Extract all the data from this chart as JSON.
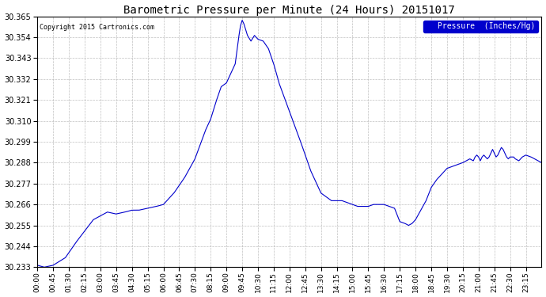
{
  "title": "Barometric Pressure per Minute (24 Hours) 20151017",
  "copyright": "Copyright 2015 Cartronics.com",
  "legend_label": "Pressure  (Inches/Hg)",
  "line_color": "#0000cc",
  "background_color": "#ffffff",
  "plot_bg_color": "#ffffff",
  "grid_color": "#b0b0b0",
  "ylim": [
    30.233,
    30.365
  ],
  "yticks": [
    30.233,
    30.244,
    30.255,
    30.266,
    30.277,
    30.288,
    30.299,
    30.31,
    30.321,
    30.332,
    30.343,
    30.354,
    30.365
  ],
  "xtick_labels": [
    "00:00",
    "00:45",
    "01:30",
    "02:15",
    "03:00",
    "03:45",
    "04:30",
    "05:15",
    "06:00",
    "06:45",
    "07:30",
    "08:15",
    "09:00",
    "09:45",
    "10:30",
    "11:15",
    "12:00",
    "12:45",
    "13:30",
    "14:15",
    "15:00",
    "15:45",
    "16:30",
    "17:15",
    "18:00",
    "18:45",
    "19:30",
    "20:15",
    "21:00",
    "21:45",
    "22:30",
    "23:15"
  ],
  "time_points": [
    0,
    45,
    90,
    135,
    180,
    225,
    270,
    315,
    360,
    405,
    450,
    495,
    540,
    585,
    630,
    675,
    720,
    765,
    810,
    855,
    900,
    945,
    990,
    1035,
    1080,
    1125,
    1170,
    1215,
    1260,
    1305,
    1350,
    1395
  ],
  "pressure_curve": [
    [
      0,
      30.234
    ],
    [
      20,
      30.233
    ],
    [
      45,
      30.234
    ],
    [
      80,
      30.238
    ],
    [
      110,
      30.246
    ],
    [
      135,
      30.252
    ],
    [
      160,
      30.258
    ],
    [
      180,
      30.26
    ],
    [
      200,
      30.262
    ],
    [
      225,
      30.261
    ],
    [
      250,
      30.262
    ],
    [
      270,
      30.263
    ],
    [
      290,
      30.263
    ],
    [
      315,
      30.264
    ],
    [
      340,
      30.265
    ],
    [
      360,
      30.266
    ],
    [
      390,
      30.272
    ],
    [
      420,
      30.28
    ],
    [
      450,
      30.29
    ],
    [
      480,
      30.305
    ],
    [
      495,
      30.311
    ],
    [
      510,
      30.32
    ],
    [
      525,
      30.328
    ],
    [
      540,
      30.33
    ],
    [
      555,
      30.336
    ],
    [
      565,
      30.34
    ],
    [
      575,
      30.354
    ],
    [
      580,
      30.36
    ],
    [
      585,
      30.363
    ],
    [
      590,
      30.361
    ],
    [
      600,
      30.355
    ],
    [
      610,
      30.352
    ],
    [
      620,
      30.355
    ],
    [
      630,
      30.353
    ],
    [
      645,
      30.352
    ],
    [
      660,
      30.348
    ],
    [
      675,
      30.34
    ],
    [
      690,
      30.33
    ],
    [
      720,
      30.315
    ],
    [
      750,
      30.3
    ],
    [
      780,
      30.284
    ],
    [
      810,
      30.272
    ],
    [
      840,
      30.268
    ],
    [
      855,
      30.268
    ],
    [
      870,
      30.268
    ],
    [
      885,
      30.267
    ],
    [
      900,
      30.266
    ],
    [
      915,
      30.265
    ],
    [
      930,
      30.265
    ],
    [
      945,
      30.265
    ],
    [
      960,
      30.266
    ],
    [
      975,
      30.266
    ],
    [
      990,
      30.266
    ],
    [
      1005,
      30.265
    ],
    [
      1020,
      30.264
    ],
    [
      1035,
      30.257
    ],
    [
      1050,
      30.256
    ],
    [
      1060,
      30.255
    ],
    [
      1070,
      30.256
    ],
    [
      1080,
      30.258
    ],
    [
      1095,
      30.263
    ],
    [
      1110,
      30.268
    ],
    [
      1125,
      30.275
    ],
    [
      1140,
      30.279
    ],
    [
      1155,
      30.282
    ],
    [
      1170,
      30.285
    ],
    [
      1185,
      30.286
    ],
    [
      1200,
      30.287
    ],
    [
      1215,
      30.288
    ],
    [
      1225,
      30.289
    ],
    [
      1235,
      30.29
    ],
    [
      1245,
      30.289
    ],
    [
      1250,
      30.291
    ],
    [
      1255,
      30.292
    ],
    [
      1260,
      30.291
    ],
    [
      1265,
      30.289
    ],
    [
      1270,
      30.291
    ],
    [
      1275,
      30.292
    ],
    [
      1285,
      30.29
    ],
    [
      1290,
      30.291
    ],
    [
      1295,
      30.293
    ],
    [
      1300,
      30.295
    ],
    [
      1305,
      30.293
    ],
    [
      1310,
      30.291
    ],
    [
      1315,
      30.292
    ],
    [
      1320,
      30.294
    ],
    [
      1325,
      30.296
    ],
    [
      1330,
      30.295
    ],
    [
      1335,
      30.293
    ],
    [
      1340,
      30.291
    ],
    [
      1345,
      30.29
    ],
    [
      1350,
      30.291
    ],
    [
      1360,
      30.291
    ],
    [
      1365,
      30.29
    ],
    [
      1375,
      30.289
    ],
    [
      1385,
      30.291
    ],
    [
      1395,
      30.292
    ],
    [
      1410,
      30.291
    ],
    [
      1420,
      30.29
    ],
    [
      1430,
      30.289
    ],
    [
      1440,
      30.288
    ]
  ]
}
